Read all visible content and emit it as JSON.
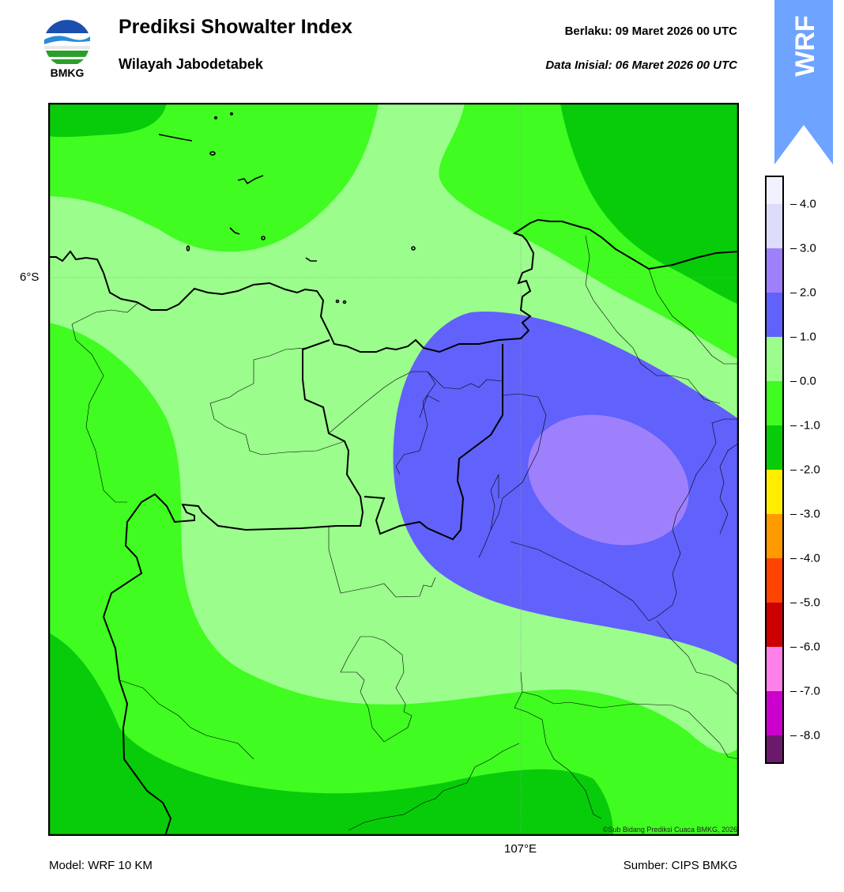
{
  "header": {
    "title": "Prediksi Showalter Index",
    "subtitle": "Wilayah Jabodetabek",
    "valid_label": "Berlaku:  09 Maret 2026 00 UTC",
    "init_label": "Data Inisial:  06 Maret 2026 00 UTC",
    "logo_text": "BMKG",
    "flag_text": "WRF"
  },
  "map": {
    "lat_label": "6°S",
    "lon_label": "107°E",
    "copyright": "©Sub Bidang Prediksi Cuaca BMKG, 2026",
    "fill_colors": {
      "level_-2_-1": "#08cc0a",
      "level_-1_0": "#40fc21",
      "level_0_1": "#9bfd8c",
      "level_1_2": "#6161fb",
      "level_2_3": "#9f80fc"
    }
  },
  "colorbar": {
    "ticks": [
      "4.0",
      "3.0",
      "2.0",
      "1.0",
      "0.0",
      "-1.0",
      "-2.0",
      "-3.0",
      "-4.0",
      "-5.0",
      "-6.0",
      "-7.0",
      "-8.0"
    ],
    "colors": [
      "#f2f2ff",
      "#dcdcfb",
      "#9f80fc",
      "#6161fb",
      "#9bfd8c",
      "#40fc21",
      "#08cc0a",
      "#ffee00",
      "#ff9a00",
      "#ff4400",
      "#cc0000",
      "#ff80e8",
      "#cc00cc",
      "#6b1a6b"
    ]
  },
  "footer": {
    "model": "Model: WRF 10 KM",
    "source": "Sumber: CIPS BMKG"
  }
}
